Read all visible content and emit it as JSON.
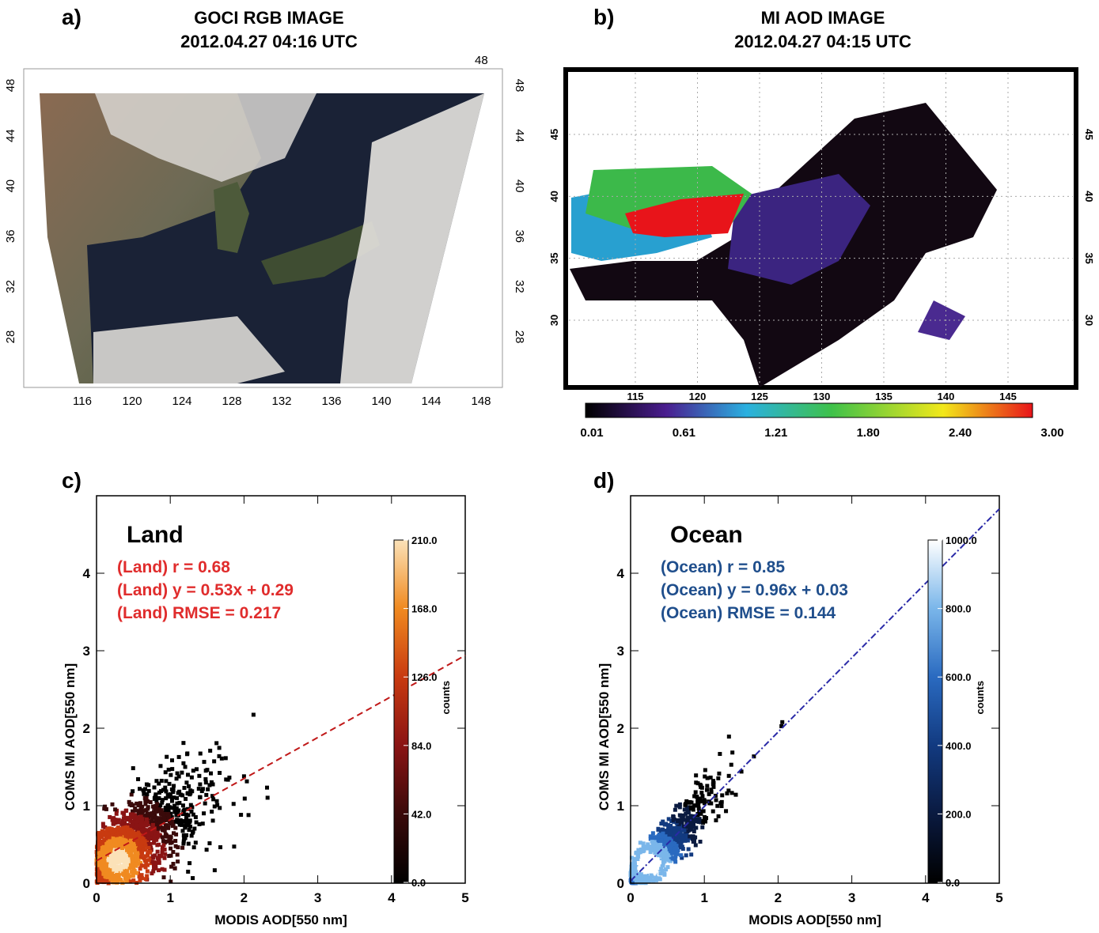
{
  "panels": {
    "a": {
      "letter": "a)",
      "title_line1": "GOCI RGB IMAGE",
      "title_line2": "2012.04.27 04:16 UTC",
      "x_ticks": [
        "116",
        "120",
        "124",
        "128",
        "132",
        "136",
        "140",
        "144",
        "148"
      ],
      "y_ticks": [
        "48",
        "44",
        "40",
        "36",
        "32",
        "28"
      ],
      "corner_label": "48"
    },
    "b": {
      "letter": "b)",
      "title_line1": "MI AOD IMAGE",
      "title_line2": "2012.04.27 04:15 UTC",
      "x_ticks": [
        "115",
        "120",
        "125",
        "130",
        "135",
        "140",
        "145"
      ],
      "y_ticks": [
        "45",
        "40",
        "35",
        "30"
      ],
      "colorbar_ticks": [
        "0.01",
        "0.61",
        "1.21",
        "1.80",
        "2.40",
        "3.00"
      ]
    },
    "c": {
      "letter": "c)",
      "heading": "Land"
    },
    "d": {
      "letter": "d)",
      "heading": "Ocean"
    }
  },
  "colors": {
    "land_stats": "#e02c2c",
    "ocean_stats": "#1f4e8c",
    "land_fit": "#c01818",
    "ocean_fit": "#2a2aa8"
  },
  "chart_data": [
    {
      "type": "scatter",
      "subtype": "density",
      "title": "Land",
      "xlabel": "MODIS AOD[550 nm]",
      "ylabel": "COMS MI AOD[550 nm]",
      "xlim": [
        0,
        5
      ],
      "ylim": [
        0,
        5
      ],
      "x_ticks": [
        0,
        1,
        2,
        3,
        4,
        5
      ],
      "y_ticks": [
        0,
        1,
        2,
        3,
        4
      ],
      "stats": [
        "(Land) r = 0.68",
        "(Land) y = 0.53x + 0.29",
        "(Land) RMSE = 0.217"
      ],
      "fit": {
        "slope": 0.53,
        "intercept": 0.29
      },
      "colorbar": {
        "label": "counts",
        "ticks": [
          "0.0",
          "42.0",
          "84.0",
          "126.0",
          "168.0",
          "210.0"
        ],
        "max": 210
      },
      "cloud": {
        "center": [
          0.3,
          0.3
        ],
        "spread": 0.55
      }
    },
    {
      "type": "scatter",
      "subtype": "density",
      "title": "Ocean",
      "xlabel": "MODIS AOD[550 nm]",
      "ylabel": "COMS MI AOD[550 nm]",
      "xlim": [
        0,
        5
      ],
      "ylim": [
        0,
        5
      ],
      "x_ticks": [
        0,
        1,
        2,
        3,
        4,
        5
      ],
      "y_ticks": [
        0,
        1,
        2,
        3,
        4
      ],
      "stats": [
        "(Ocean) r = 0.85",
        "(Ocean) y = 0.96x + 0.03",
        "(Ocean) RMSE = 0.144"
      ],
      "fit": {
        "slope": 0.96,
        "intercept": 0.03
      },
      "colorbar": {
        "label": "counts",
        "ticks": [
          "0.0",
          "200.0",
          "400.0",
          "600.0",
          "800.0",
          "1000.0"
        ],
        "max": 1000
      },
      "cloud": {
        "center": [
          0.25,
          0.25
        ],
        "spread": 0.4
      }
    }
  ]
}
